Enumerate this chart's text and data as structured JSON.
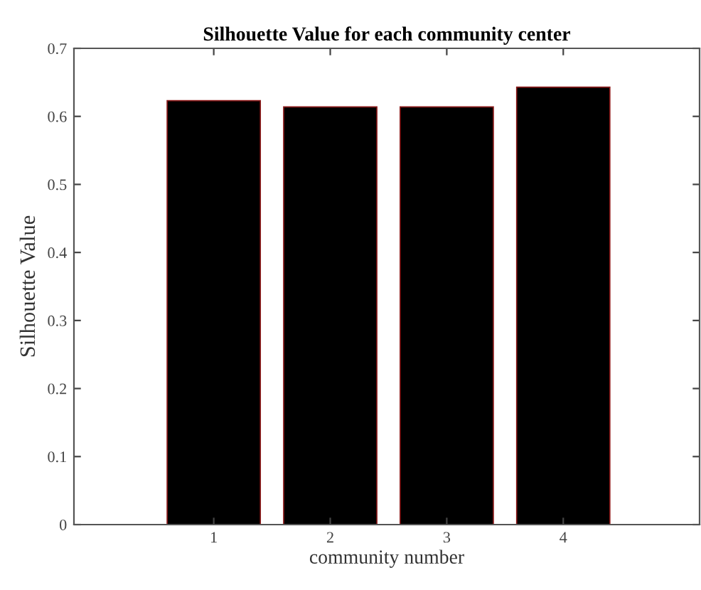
{
  "chart_data": {
    "type": "bar",
    "title": "Silhouette Value for each community center",
    "xlabel": "community number",
    "ylabel": "Silhouette Value",
    "categories": [
      "1",
      "2",
      "3",
      "4"
    ],
    "values": [
      0.623,
      0.614,
      0.614,
      0.643
    ],
    "color": "#000000",
    "ylim": [
      0,
      0.7
    ],
    "yticks": [
      0,
      0.1,
      0.2,
      0.3,
      0.4,
      0.5,
      0.6,
      0.7
    ],
    "grid": false,
    "legend": false
  }
}
